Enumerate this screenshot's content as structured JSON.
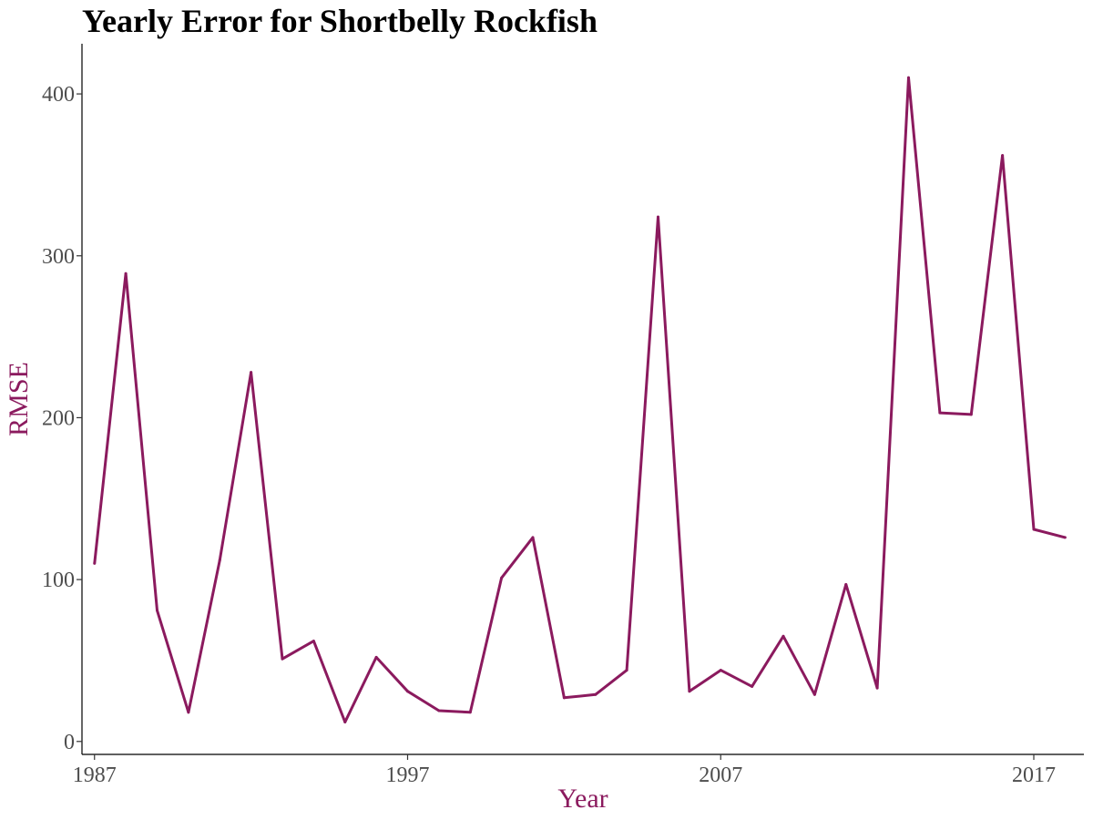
{
  "chart_data": {
    "type": "line",
    "title": "Yearly Error for Shortbelly Rockfish",
    "xlabel": "Year",
    "ylabel": "RMSE",
    "x_ticks": [
      1987,
      1997,
      2007,
      2017
    ],
    "y_ticks": [
      0,
      100,
      200,
      300,
      400
    ],
    "xlim": [
      1986.6,
      2018.6
    ],
    "ylim": [
      -8,
      431
    ],
    "grid": false,
    "colors": {
      "line": "#8B1A5E",
      "axis_title": "#8B1A5E",
      "axis_line": "#000000",
      "tick_label": "#4d4d4d"
    },
    "series": [
      {
        "x": [
          1987,
          1988,
          1989,
          1990,
          1991,
          1992,
          1993,
          1994,
          1995,
          1996,
          1997,
          1998,
          1999,
          2000,
          2001,
          2002,
          2003,
          2004,
          2005,
          2006,
          2007,
          2008,
          2009,
          2010,
          2011,
          2012,
          2013,
          2014,
          2015,
          2016,
          2017,
          2018
        ],
        "values": [
          110,
          289,
          81,
          18,
          112,
          228,
          51,
          62,
          12,
          52,
          31,
          19,
          18,
          101,
          126,
          27,
          29,
          44,
          324,
          31,
          44,
          34,
          65,
          29,
          97,
          33,
          410,
          203,
          202,
          362,
          131,
          126
        ]
      }
    ]
  }
}
